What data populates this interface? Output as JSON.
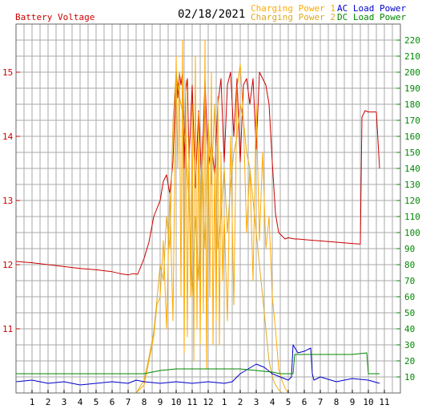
{
  "chart_data": {
    "type": "line",
    "title": "",
    "date": "02/18/2021",
    "xlabel": "",
    "x_axis_hours": [
      "1",
      "2",
      "3",
      "4",
      "5",
      "6",
      "7",
      "8",
      "9",
      "10",
      "11",
      "12",
      "1",
      "2",
      "3",
      "4",
      "5",
      "6",
      "7",
      "8",
      "9",
      "10",
      "11"
    ],
    "left_axis": {
      "label": "Battery Voltage",
      "color": "#cc0000",
      "ticks": [
        "11",
        "12",
        "13",
        "14",
        "15"
      ],
      "range": [
        10.0,
        15.75
      ]
    },
    "right_axis": {
      "color": "#008800",
      "ticks": [
        "10",
        "20",
        "30",
        "40",
        "50",
        "60",
        "70",
        "80",
        "90",
        "100",
        "110",
        "120",
        "130",
        "140",
        "150",
        "160",
        "170",
        "180",
        "190",
        "200",
        "210",
        "220"
      ],
      "range": [
        0,
        230
      ]
    },
    "legend": [
      {
        "name": "Charging Power 1",
        "color": "#ffaa00"
      },
      {
        "name": "Charging Power 2",
        "color": "#ddaa22"
      },
      {
        "name": "AC Load Power",
        "color": "#0000cc"
      },
      {
        "name": "DC Load Power",
        "color": "#008800"
      }
    ],
    "series": [
      {
        "name": "Battery Voltage",
        "axis": "left",
        "color": "#cc0000",
        "x": [
          0,
          1,
          2,
          3,
          4,
          5,
          6,
          6.5,
          7,
          7.3,
          7.6,
          8,
          8.3,
          8.6,
          9,
          9.2,
          9.4,
          9.6,
          9.8,
          10,
          10.1,
          10.2,
          10.3,
          10.4,
          10.5,
          10.6,
          10.7,
          10.8,
          11,
          11.2,
          11.4,
          11.6,
          11.8,
          12,
          12.2,
          12.4,
          12.6,
          12.8,
          13,
          13.2,
          13.4,
          13.6,
          13.8,
          14,
          14.2,
          14.4,
          14.6,
          14.8,
          15,
          15.2,
          15.4,
          15.6,
          15.8,
          16,
          16.2,
          16.4,
          16.6,
          16.8,
          17,
          17.2,
          17.4,
          17.6,
          18,
          18.5,
          19,
          20,
          21,
          21.5,
          21.6,
          21.8,
          22,
          22.2,
          22.5,
          22.7
        ],
        "y": [
          12.05,
          12.03,
          12.0,
          11.97,
          11.94,
          11.92,
          11.89,
          11.86,
          11.84,
          11.86,
          11.85,
          12.1,
          12.35,
          12.75,
          13.0,
          13.3,
          13.4,
          13.1,
          13.6,
          15.0,
          14.6,
          15.0,
          14.8,
          15.0,
          13.5,
          14.7,
          14.9,
          13.6,
          14.8,
          13.2,
          14.4,
          13.3,
          14.9,
          13.5,
          13.9,
          13.4,
          14.5,
          14.9,
          13.6,
          14.8,
          15.0,
          14.0,
          14.9,
          13.6,
          14.8,
          14.9,
          14.5,
          14.9,
          13.8,
          15.0,
          14.9,
          14.8,
          14.5,
          13.6,
          12.8,
          12.5,
          12.45,
          12.4,
          12.42,
          12.41,
          12.4,
          12.4,
          12.39,
          12.38,
          12.37,
          12.35,
          12.33,
          12.32,
          14.3,
          14.4,
          14.38,
          14.38,
          14.38,
          13.5
        ]
      },
      {
        "name": "Charging Power 1",
        "axis": "right",
        "color": "#ffaa00",
        "x": [
          0,
          7,
          7.5,
          8,
          8.3,
          8.6,
          8.8,
          9,
          9.2,
          9.4,
          9.6,
          9.8,
          10,
          10.1,
          10.2,
          10.3,
          10.4,
          10.5,
          10.6,
          10.7,
          10.8,
          10.9,
          11,
          11.1,
          11.2,
          11.3,
          11.4,
          11.5,
          11.6,
          11.7,
          11.8,
          11.9,
          12,
          12.1,
          12.2,
          12.3,
          12.4,
          12.5,
          12.6,
          12.7,
          12.8,
          12.9,
          13,
          13.2,
          13.4,
          13.6,
          13.8,
          14,
          14.2,
          14.4,
          14.6,
          14.8,
          15,
          15.2,
          15.4,
          15.6,
          15.8,
          16,
          16.2,
          16.4,
          16.6,
          16.8,
          17,
          17.2,
          17.4,
          17.6,
          22.7
        ],
        "y": [
          0,
          0,
          0,
          5,
          20,
          35,
          55,
          60,
          95,
          40,
          125,
          45,
          210,
          140,
          200,
          60,
          220,
          25,
          195,
          35,
          160,
          60,
          180,
          20,
          210,
          40,
          175,
          30,
          160,
          50,
          220,
          15,
          170,
          60,
          200,
          30,
          140,
          45,
          185,
          30,
          150,
          70,
          110,
          45,
          160,
          55,
          190,
          205,
          170,
          100,
          140,
          70,
          180,
          95,
          150,
          90,
          110,
          60,
          40,
          15,
          8,
          3,
          0,
          0,
          0,
          0,
          0
        ]
      },
      {
        "name": "Charging Power 2",
        "axis": "right",
        "color": "#ddaa22",
        "x": [
          0,
          7,
          7.5,
          8,
          8.3,
          8.6,
          8.8,
          9,
          9.2,
          9.4,
          9.6,
          9.8,
          10,
          10.2,
          10.4,
          10.6,
          10.8,
          11,
          11.2,
          11.4,
          11.6,
          11.8,
          12,
          12.2,
          12.4,
          12.6,
          12.8,
          13,
          13.2,
          13.4,
          13.6,
          13.8,
          14,
          14.2,
          14.4,
          14.6,
          14.8,
          15,
          15.2,
          15.4,
          15.6,
          15.8,
          16,
          16.2,
          16.4,
          16.6,
          16.8,
          17,
          22.7
        ],
        "y": [
          0,
          0,
          0,
          8,
          22,
          38,
          58,
          80,
          70,
          110,
          90,
          170,
          200,
          185,
          175,
          150,
          120,
          60,
          110,
          70,
          150,
          90,
          170,
          130,
          180,
          90,
          110,
          140,
          100,
          130,
          150,
          160,
          180,
          170,
          150,
          140,
          120,
          100,
          80,
          60,
          40,
          20,
          10,
          5,
          2,
          0,
          0,
          0,
          0
        ]
      },
      {
        "name": "AC Load Power",
        "axis": "right",
        "color": "#0000cc",
        "x": [
          0,
          1,
          2,
          3,
          4,
          5,
          6,
          7,
          7.5,
          8,
          9,
          10,
          11,
          12,
          13,
          13.5,
          14,
          15,
          15.5,
          16,
          16.5,
          17,
          17.2,
          17.3,
          17.6,
          18,
          18.4,
          18.5,
          18.6,
          19,
          20,
          21,
          22,
          22.7
        ],
        "y": [
          7,
          8,
          6,
          7,
          5,
          6,
          7,
          6,
          8,
          7,
          6,
          7,
          6,
          7,
          6,
          7,
          12,
          18,
          16,
          12,
          10,
          8,
          10,
          30,
          25,
          26,
          28,
          12,
          8,
          10,
          7,
          9,
          8,
          6
        ]
      },
      {
        "name": "DC Load Power",
        "axis": "right",
        "color": "#008800",
        "x": [
          0,
          7,
          7.5,
          8,
          9,
          10,
          11,
          12,
          13,
          13.5,
          14,
          15,
          16,
          16.5,
          17,
          17.3,
          17.4,
          18,
          19,
          20,
          21,
          21.9,
          22,
          22.7
        ],
        "y": [
          12,
          12,
          12,
          12,
          14,
          15,
          15,
          15,
          15,
          15,
          15,
          14,
          13,
          12,
          12,
          12,
          24,
          24,
          24,
          24,
          24,
          25,
          12,
          12
        ]
      }
    ]
  }
}
